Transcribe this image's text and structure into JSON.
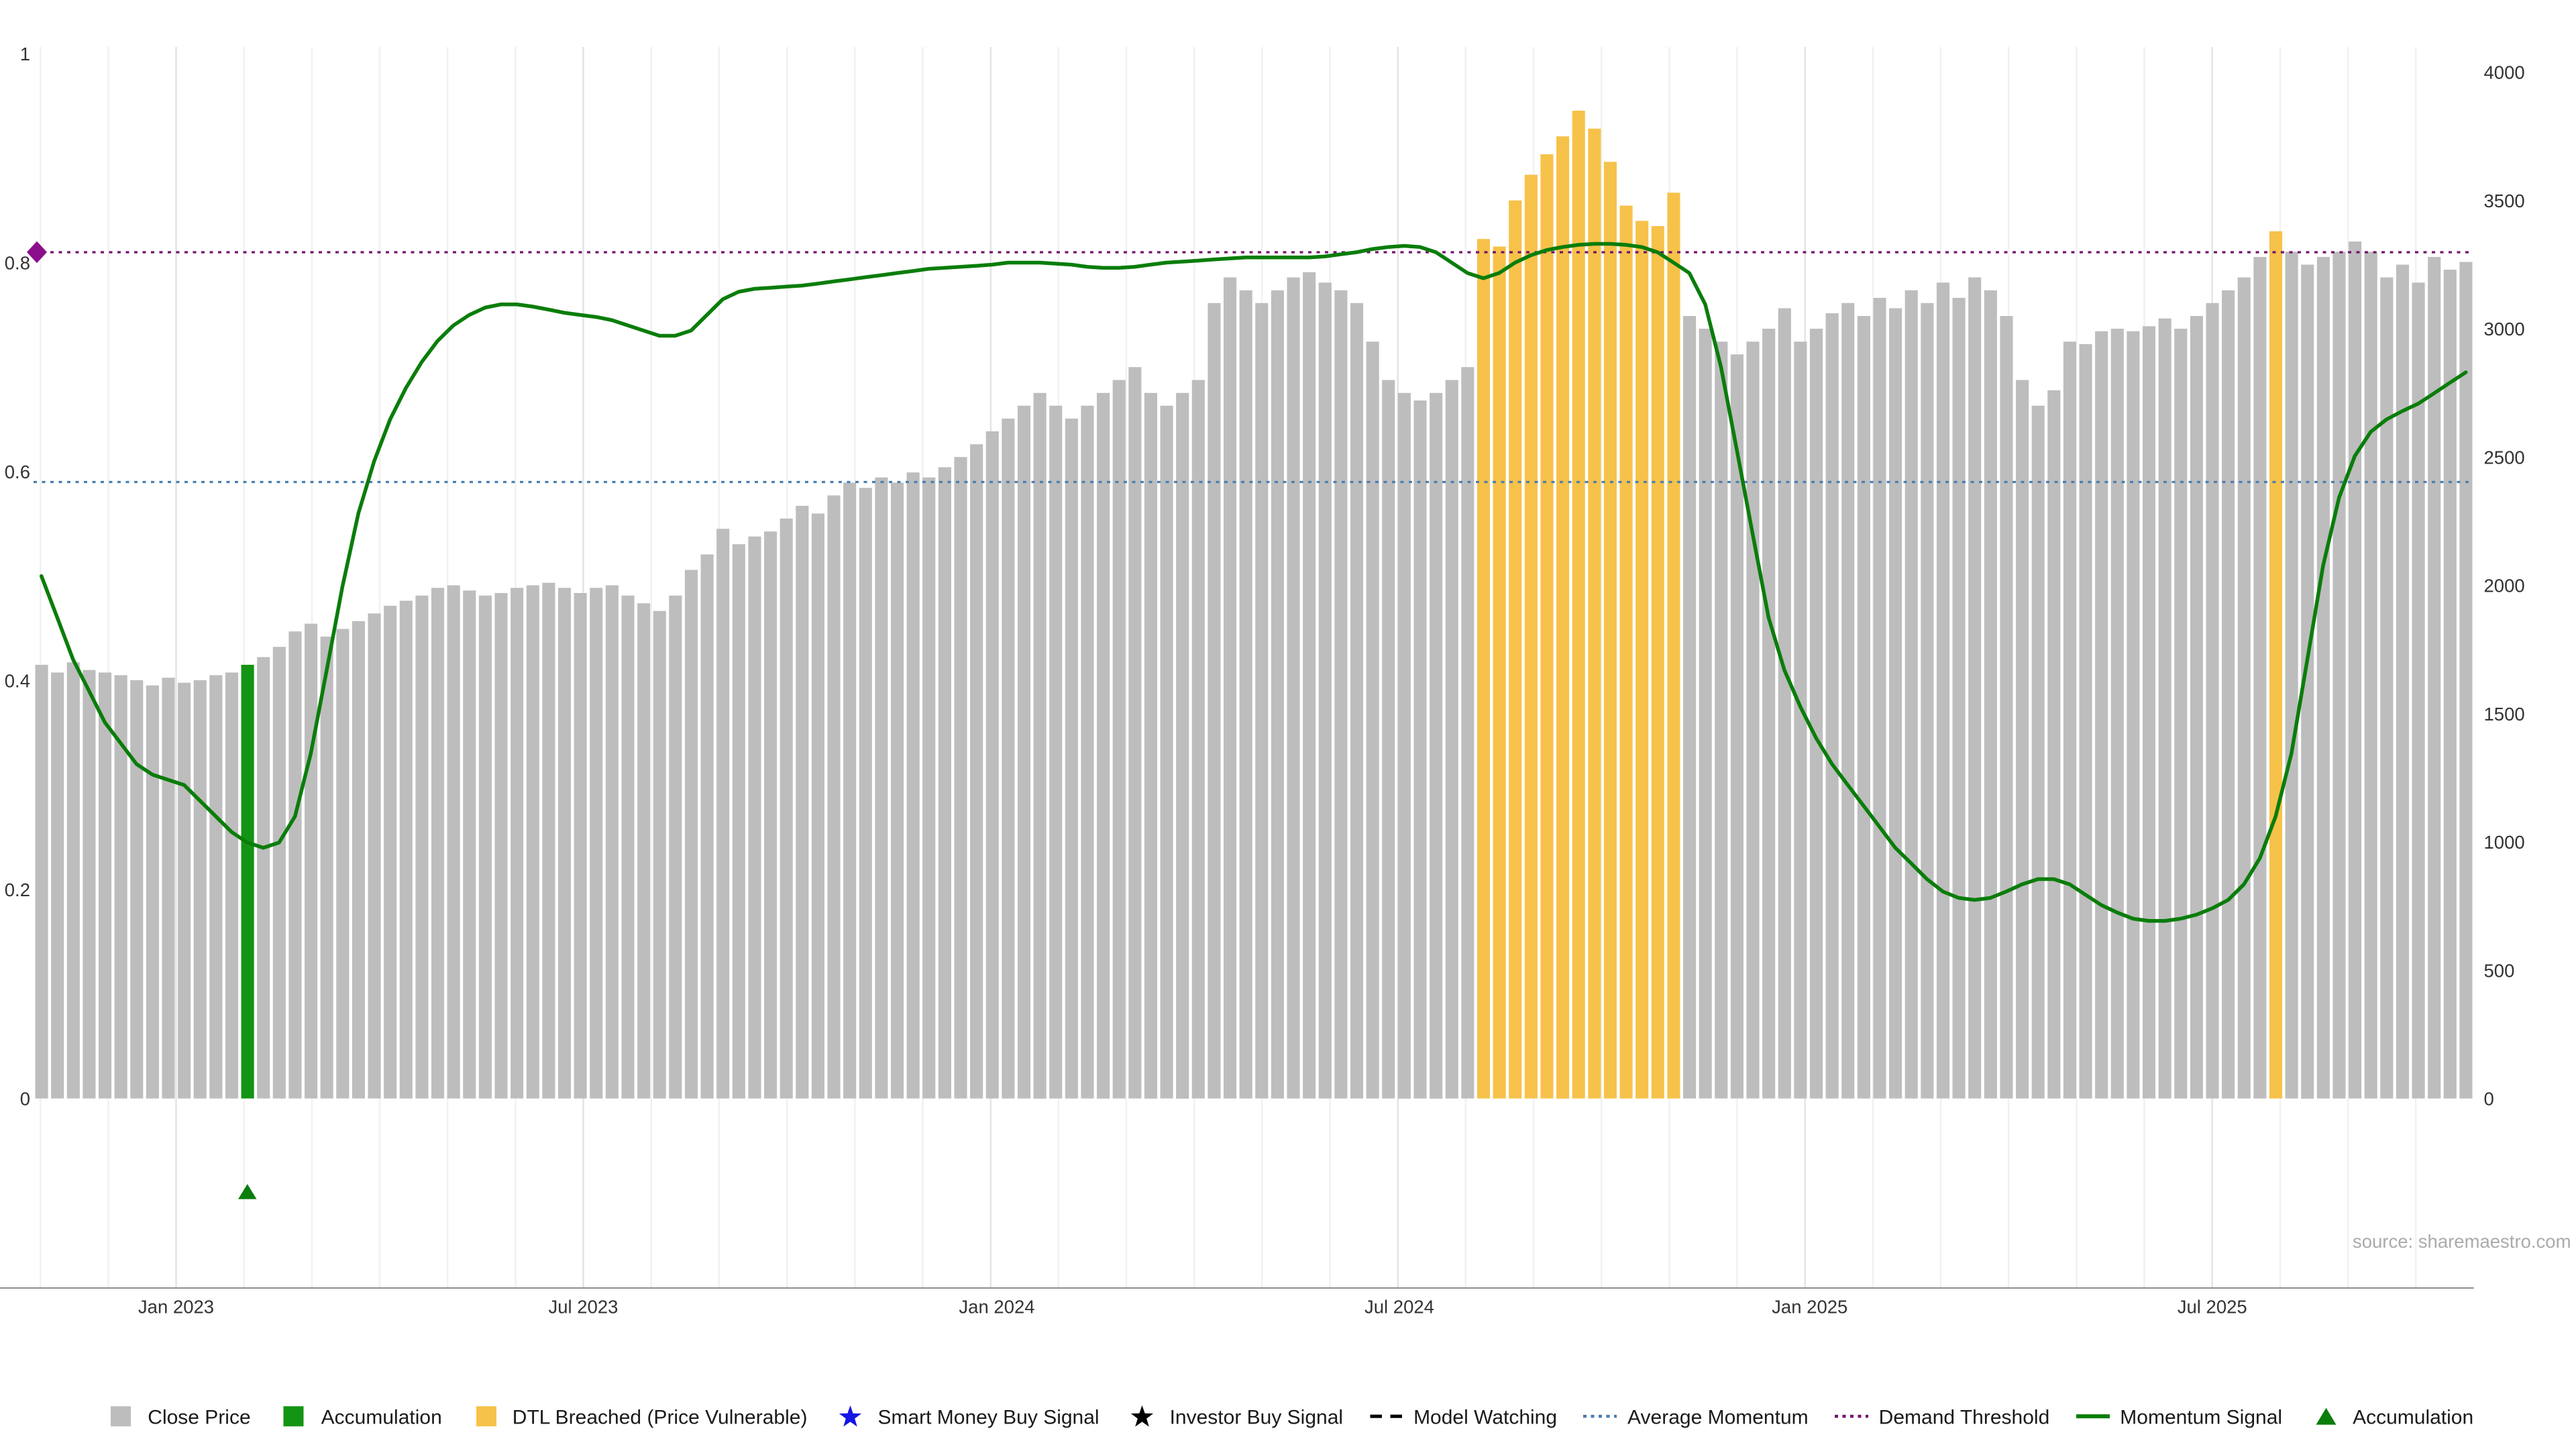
{
  "page": {
    "source_label": "source: sharemaestro.com"
  },
  "chart_data": {
    "type": "bar",
    "subtype": "weekly close-price bars with momentum line overlay",
    "title": "",
    "xlabel": "",
    "ylabel": "",
    "periodicity": "weekly",
    "left_axis": {
      "ticks": [
        0,
        0.2,
        0.4,
        0.6,
        0.8,
        1
      ],
      "range": [
        0,
        1
      ]
    },
    "right_axis": {
      "ticks": [
        0,
        500,
        1000,
        1500,
        2000,
        2500,
        3000,
        3500,
        4000
      ],
      "range": [
        0,
        4000
      ]
    },
    "x_tick_labels": [
      {
        "label": "Jan 2023",
        "week_index": 8.5
      },
      {
        "label": "Jul 2023",
        "week_index": 34.2
      },
      {
        "label": "Jan 2024",
        "week_index": 60.3
      },
      {
        "label": "Jul 2024",
        "week_index": 85.7
      },
      {
        "label": "Jan 2025",
        "week_index": 111.6
      },
      {
        "label": "Jul 2025",
        "week_index": 137.0
      }
    ],
    "bars": {
      "name": "Close Price",
      "values": [
        1690,
        1660,
        1700,
        1670,
        1660,
        1650,
        1630,
        1610,
        1640,
        1620,
        1630,
        1650,
        1660,
        1690,
        1720,
        1760,
        1820,
        1850,
        1800,
        1830,
        1860,
        1890,
        1920,
        1940,
        1960,
        1990,
        2000,
        1980,
        1960,
        1970,
        1990,
        2000,
        2010,
        1990,
        1970,
        1990,
        2000,
        1960,
        1930,
        1900,
        1960,
        2060,
        2120,
        2220,
        2160,
        2190,
        2210,
        2260,
        2310,
        2280,
        2350,
        2400,
        2380,
        2420,
        2400,
        2440,
        2420,
        2460,
        2500,
        2550,
        2600,
        2650,
        2700,
        2750,
        2700,
        2650,
        2700,
        2750,
        2800,
        2850,
        2750,
        2700,
        2750,
        2800,
        3100,
        3200,
        3150,
        3100,
        3150,
        3200,
        3220,
        3180,
        3150,
        3100,
        2950,
        2800,
        2750,
        2720,
        2750,
        2800,
        2850,
        3350,
        3320,
        3500,
        3600,
        3680,
        3750,
        3850,
        3780,
        3650,
        3480,
        3420,
        3400,
        3530,
        3050,
        3000,
        2950,
        2900,
        2950,
        3000,
        3080,
        2950,
        3000,
        3060,
        3100,
        3050,
        3120,
        3080,
        3150,
        3100,
        3180,
        3120,
        3200,
        3150,
        3050,
        2800,
        2700,
        2760,
        2950,
        2940,
        2990,
        3000,
        2990,
        3010,
        3040,
        3000,
        3050,
        3100,
        3150,
        3200,
        3280,
        3380,
        3300,
        3250,
        3280,
        3300,
        3340,
        3300,
        3200,
        3250,
        3180,
        3280,
        3230,
        3260
      ],
      "accumulation_indices": [
        13
      ],
      "dtl_breached_indices": [
        91,
        92,
        93,
        94,
        95,
        96,
        97,
        98,
        99,
        100,
        101,
        102,
        103,
        141
      ]
    },
    "momentum": {
      "name": "Momentum Signal",
      "values": [
        0.5,
        0.46,
        0.42,
        0.39,
        0.36,
        0.34,
        0.32,
        0.31,
        0.305,
        0.3,
        0.285,
        0.27,
        0.255,
        0.245,
        0.24,
        0.245,
        0.27,
        0.33,
        0.41,
        0.49,
        0.56,
        0.61,
        0.65,
        0.68,
        0.705,
        0.725,
        0.74,
        0.75,
        0.757,
        0.76,
        0.76,
        0.758,
        0.755,
        0.752,
        0.75,
        0.748,
        0.745,
        0.74,
        0.735,
        0.73,
        0.73,
        0.735,
        0.75,
        0.765,
        0.772,
        0.775,
        0.776,
        0.777,
        0.778,
        0.78,
        0.782,
        0.784,
        0.786,
        0.788,
        0.79,
        0.792,
        0.794,
        0.795,
        0.796,
        0.797,
        0.798,
        0.8,
        0.8,
        0.8,
        0.799,
        0.798,
        0.796,
        0.795,
        0.795,
        0.796,
        0.798,
        0.8,
        0.801,
        0.802,
        0.803,
        0.804,
        0.805,
        0.805,
        0.805,
        0.805,
        0.805,
        0.806,
        0.808,
        0.81,
        0.813,
        0.815,
        0.816,
        0.815,
        0.81,
        0.8,
        0.79,
        0.785,
        0.79,
        0.8,
        0.807,
        0.812,
        0.815,
        0.817,
        0.818,
        0.818,
        0.817,
        0.815,
        0.81,
        0.8,
        0.79,
        0.76,
        0.7,
        0.62,
        0.54,
        0.46,
        0.41,
        0.375,
        0.345,
        0.32,
        0.3,
        0.28,
        0.26,
        0.24,
        0.225,
        0.21,
        0.198,
        0.192,
        0.19,
        0.192,
        0.198,
        0.205,
        0.21,
        0.21,
        0.205,
        0.195,
        0.185,
        0.178,
        0.172,
        0.17,
        0.17,
        0.172,
        0.176,
        0.182,
        0.19,
        0.205,
        0.23,
        0.27,
        0.33,
        0.42,
        0.51,
        0.575,
        0.615,
        0.638,
        0.65,
        0.658,
        0.665,
        0.675,
        0.685,
        0.695
      ]
    },
    "average_momentum": 0.59,
    "demand_threshold": 0.81,
    "markers": {
      "demand_threshold_diamond": {
        "week_index": 0,
        "value": 0.81
      },
      "accumulation_triangle": {
        "week_index": 13
      }
    },
    "colors": {
      "close": "#bdbdbd",
      "accumulation": "#149414",
      "dtl": "#f6c24a",
      "momentum": "#0a7d0a",
      "avg_momentum": "#4a7fb0",
      "demand": "#72136e",
      "diamond": "#8b0f8b",
      "axis_text": "#333333",
      "grid": "#f1f1f1",
      "grid_major": "#e4e4e4",
      "axis_line": "#999999",
      "source": "#ababab"
    }
  },
  "legend": {
    "items": [
      {
        "label": "Close Price",
        "icon": "square",
        "color": "#bdbdbd"
      },
      {
        "label": "Accumulation",
        "icon": "square",
        "color": "#149414"
      },
      {
        "label": "DTL Breached (Price Vulnerable)",
        "icon": "square",
        "color": "#f6c24a"
      },
      {
        "label": "Smart Money Buy Signal",
        "icon": "star",
        "color": "#1515e6"
      },
      {
        "label": "Investor Buy Signal",
        "icon": "star",
        "color": "#000000"
      },
      {
        "label": "Model Watching",
        "icon": "dash-line",
        "color": "#000000"
      },
      {
        "label": "Average Momentum",
        "icon": "dotted-line",
        "color": "#4a7fb0"
      },
      {
        "label": "Demand Threshold",
        "icon": "dotted-line",
        "color": "#72136e"
      },
      {
        "label": "Momentum Signal",
        "icon": "solid-line",
        "color": "#0a7d0a"
      },
      {
        "label": "Accumulation",
        "icon": "triangle",
        "color": "#0a7d0a"
      }
    ]
  }
}
